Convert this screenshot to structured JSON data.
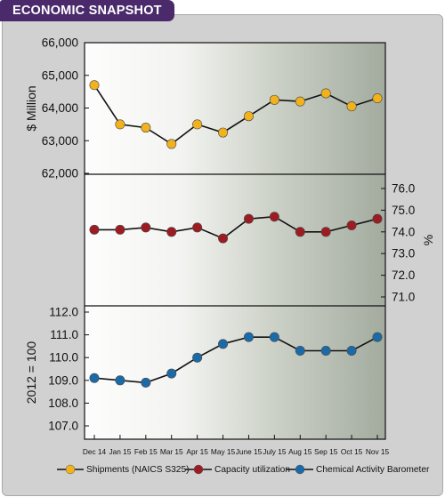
{
  "title": "ECONOMIC SNAPSHOT",
  "chart_data": {
    "type": "line",
    "categories": [
      "Dec 14",
      "Jan 15",
      "Feb 15",
      "Mar 15",
      "Apr 15",
      "May 15",
      "June 15",
      "July 15",
      "Aug 15",
      "Sep 15",
      "Oct 15",
      "Nov 15"
    ],
    "panels": [
      {
        "series_name": "Shipments (NAICS S325)",
        "ylabel": "$ Million",
        "axis_side": "left",
        "ylim": [
          62000,
          66000
        ],
        "ticks": [
          "62,000",
          "63,000",
          "64,000",
          "65,000",
          "66,000"
        ],
        "tick_values": [
          62000,
          63000,
          64000,
          65000,
          66000
        ],
        "values": [
          64700,
          63500,
          63400,
          62900,
          63500,
          63250,
          63750,
          64250,
          64200,
          64450,
          64050,
          64300
        ],
        "color": "#f2b21b"
      },
      {
        "series_name": "Capacity utilization",
        "ylabel": "%",
        "axis_side": "right",
        "ylim": [
          71.0,
          76.0
        ],
        "ticks": [
          "71.0",
          "72.0",
          "73.0",
          "74.0",
          "75.0",
          "76.0"
        ],
        "tick_values": [
          71,
          72,
          73,
          74,
          75,
          76
        ],
        "values": [
          74.1,
          74.1,
          74.2,
          74.0,
          74.2,
          73.7,
          74.6,
          74.7,
          74.0,
          74.0,
          74.3,
          74.6
        ],
        "color": "#9e1b22"
      },
      {
        "series_name": "Chemical Activity Barometer",
        "ylabel": "2012 = 100",
        "axis_side": "left",
        "ylim": [
          107.0,
          112.0
        ],
        "ticks": [
          "107.0",
          "108.0",
          "109.0",
          "110.0",
          "111.0",
          "112.0"
        ],
        "tick_values": [
          107,
          108,
          109,
          110,
          111,
          112
        ],
        "values": [
          109.1,
          109.0,
          108.9,
          109.3,
          110.0,
          110.6,
          110.9,
          110.9,
          110.3,
          110.3,
          110.3,
          110.9
        ],
        "color": "#1a6aa8"
      }
    ],
    "legend": [
      {
        "label": "Shipments (NAICS S325)",
        "color": "#f2b21b"
      },
      {
        "label": "Capacity utilization",
        "color": "#9e1b22"
      },
      {
        "label": "Chemical Activity Barometer",
        "color": "#1a6aa8"
      }
    ],
    "legend_position": "bottom"
  }
}
